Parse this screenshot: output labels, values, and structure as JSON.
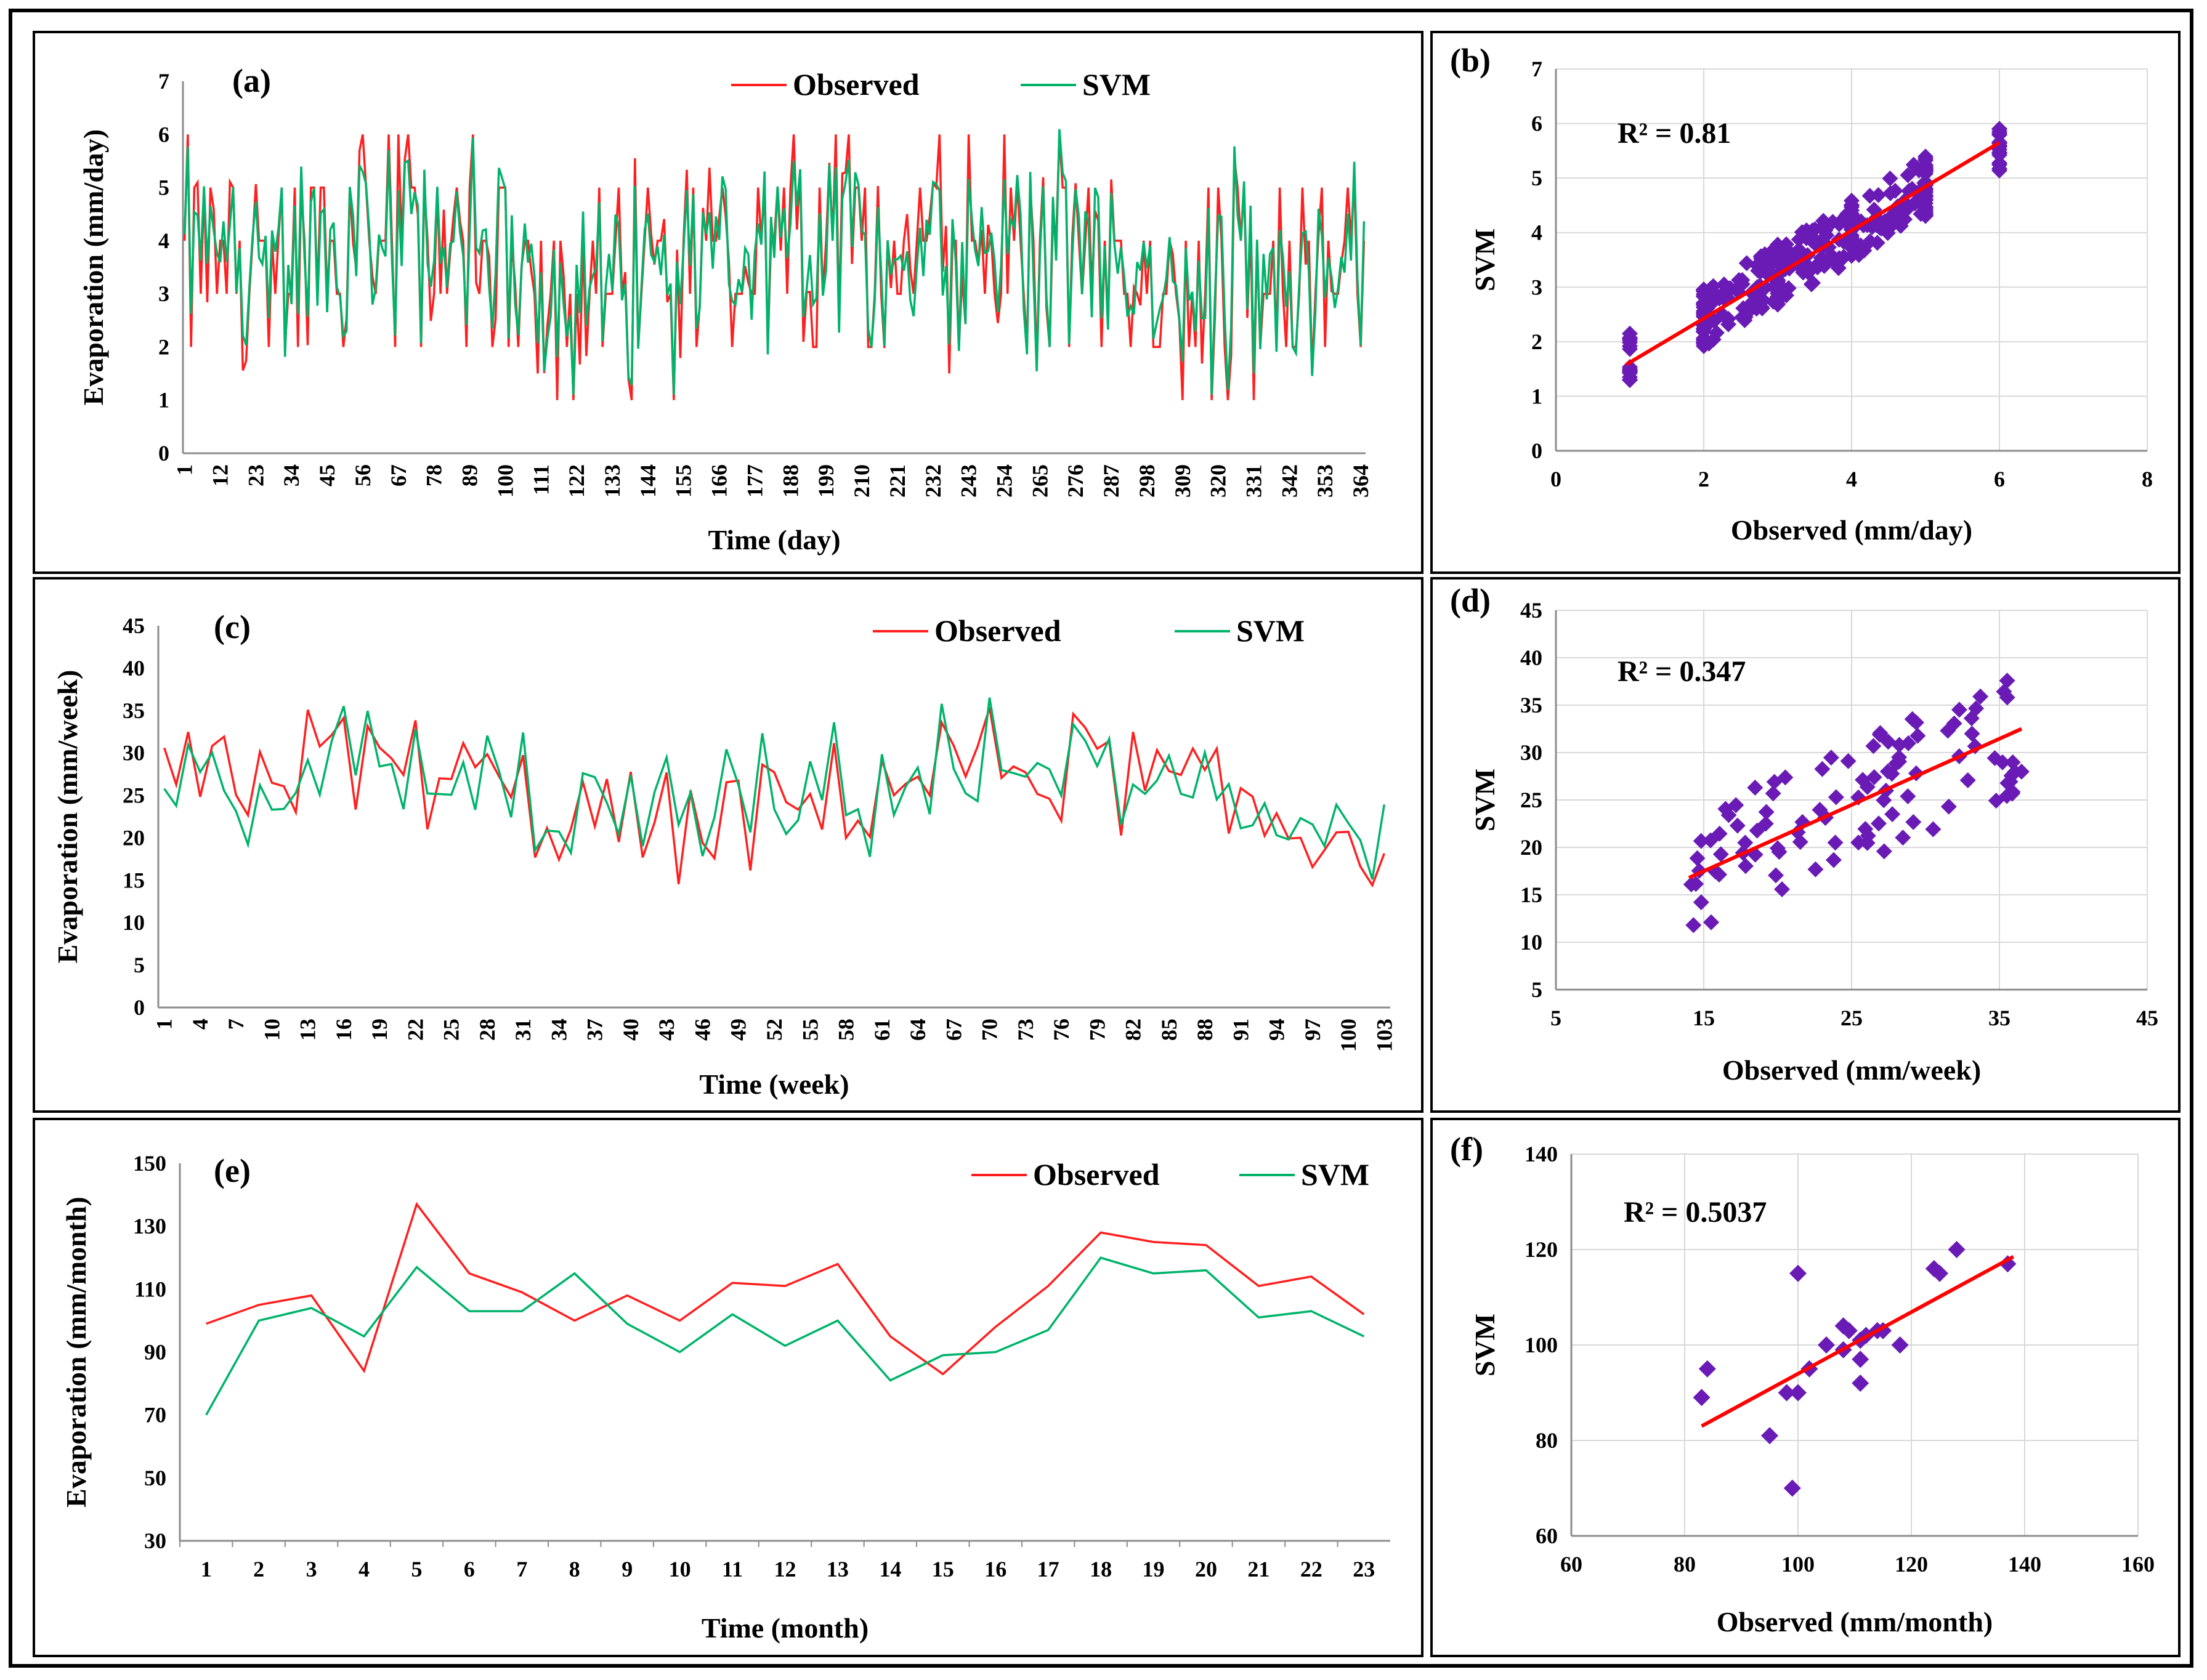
{
  "colors": {
    "observed": "#ff1f1f",
    "svm": "#00b36b",
    "scatter": "#6a1bb5",
    "trend": "#ff0000"
  },
  "chart_data": [
    {
      "id": "a",
      "panel_label": "(a)",
      "type": "line",
      "title": "",
      "xlabel": "Time (day)",
      "ylabel": "Evaporation  (mm/day)",
      "ylim": [
        0,
        7
      ],
      "yticks": [
        "0",
        "1",
        "2",
        "3",
        "4",
        "5",
        "6",
        "7"
      ],
      "xticks": [
        "1",
        "12",
        "23",
        "34",
        "45",
        "56",
        "67",
        "78",
        "89",
        "100",
        "111",
        "122",
        "133",
        "144",
        "155",
        "166",
        "177",
        "188",
        "199",
        "210",
        "221",
        "232",
        "243",
        "254",
        "265",
        "276",
        "287",
        "298",
        "309",
        "320",
        "331",
        "342",
        "353",
        "364"
      ],
      "x_count": 365,
      "generated_series": true,
      "legend": [
        {
          "name": "Observed"
        },
        {
          "name": "SVM"
        }
      ],
      "series": [
        {
          "name": "Observed"
        },
        {
          "name": "SVM"
        }
      ]
    },
    {
      "id": "b",
      "panel_label": "(b)",
      "type": "scatter",
      "xlabel": "Observed (mm/day)",
      "ylabel": "SVM",
      "xlim": [
        0,
        8
      ],
      "ylim": [
        0,
        7
      ],
      "xticks": [
        "0",
        "2",
        "4",
        "6",
        "8"
      ],
      "yticks": [
        "0",
        "1",
        "2",
        "3",
        "4",
        "5",
        "6",
        "7"
      ],
      "r2_label": "R² = 0.81",
      "trend": [
        [
          0.95,
          1.58
        ],
        [
          6.0,
          5.65
        ]
      ],
      "generated_points": true
    },
    {
      "id": "c",
      "panel_label": "(c)",
      "type": "line",
      "xlabel": "Time (week)",
      "ylabel": "Evaporation  (mm/week)",
      "ylim": [
        0,
        45
      ],
      "yticks": [
        "0",
        "5",
        "10",
        "15",
        "20",
        "25",
        "30",
        "35",
        "40",
        "45"
      ],
      "xticks": [
        "1",
        "4",
        "7",
        "10",
        "13",
        "16",
        "19",
        "22",
        "25",
        "28",
        "31",
        "34",
        "37",
        "40",
        "43",
        "46",
        "49",
        "52",
        "55",
        "58",
        "61",
        "64",
        "67",
        "70",
        "73",
        "76",
        "79",
        "82",
        "85",
        "88",
        "91",
        "94",
        "97",
        "100",
        "103"
      ],
      "x_count": 103,
      "generated_series": true,
      "legend": [
        {
          "name": "Observed"
        },
        {
          "name": "SVM"
        }
      ],
      "series": [
        {
          "name": "Observed"
        },
        {
          "name": "SVM"
        }
      ]
    },
    {
      "id": "d",
      "panel_label": "(d)",
      "type": "scatter",
      "xlabel": "Observed (mm/week)",
      "ylabel": "SVM",
      "xlim": [
        5,
        45
      ],
      "ylim": [
        5,
        45
      ],
      "xticks": [
        "5",
        "15",
        "25",
        "35",
        "45"
      ],
      "yticks": [
        "5",
        "10",
        "15",
        "20",
        "25",
        "30",
        "35",
        "40",
        "45"
      ],
      "r2_label": "R² = 0.347",
      "trend": [
        [
          14,
          16.8
        ],
        [
          36.5,
          32.5
        ]
      ],
      "generated_points": true
    },
    {
      "id": "e",
      "panel_label": "(e)",
      "type": "line",
      "xlabel": "Time (month)",
      "ylabel": "Evaporation  (mm/month)",
      "ylim": [
        30,
        150
      ],
      "yticks": [
        "30",
        "50",
        "70",
        "90",
        "110",
        "130",
        "150"
      ],
      "categories": [
        "1",
        "2",
        "3",
        "4",
        "5",
        "6",
        "7",
        "8",
        "9",
        "10",
        "11",
        "12",
        "13",
        "14",
        "15",
        "16",
        "17",
        "18",
        "19",
        "20",
        "21",
        "22",
        "23"
      ],
      "legend": [
        {
          "name": "Observed"
        },
        {
          "name": "SVM"
        }
      ],
      "series": [
        {
          "name": "Observed",
          "values": [
            99,
            105,
            108,
            84,
            137,
            115,
            109,
            100,
            108,
            100,
            112,
            111,
            118,
            95,
            83,
            98,
            111,
            128,
            125,
            124,
            111,
            114,
            102
          ]
        },
        {
          "name": "SVM",
          "values": [
            70,
            100,
            104,
            95,
            117,
            103,
            103,
            115,
            99,
            90,
            102,
            92,
            100,
            81,
            89,
            90,
            97,
            120,
            115,
            116,
            101,
            103,
            95
          ]
        }
      ]
    },
    {
      "id": "f",
      "panel_label": "(f)",
      "type": "scatter",
      "xlabel": "Observed (mm/month)",
      "ylabel": "SVM",
      "xlim": [
        60,
        160
      ],
      "ylim": [
        60,
        140
      ],
      "xticks": [
        "60",
        "80",
        "100",
        "120",
        "140",
        "160"
      ],
      "yticks": [
        "60",
        "80",
        "100",
        "120",
        "140"
      ],
      "r2_label": "R² = 0.5037",
      "trend": [
        [
          83,
          83
        ],
        [
          138,
          118.5
        ]
      ],
      "points": [
        [
          99,
          70
        ],
        [
          105,
          100
        ],
        [
          108,
          104
        ],
        [
          84,
          95
        ],
        [
          137,
          117
        ],
        [
          115,
          103
        ],
        [
          109,
          103
        ],
        [
          100,
          115
        ],
        [
          108,
          99
        ],
        [
          100,
          90
        ],
        [
          112,
          102
        ],
        [
          111,
          92
        ],
        [
          118,
          100
        ],
        [
          95,
          81
        ],
        [
          83,
          89
        ],
        [
          98,
          90
        ],
        [
          111,
          97
        ],
        [
          128,
          120
        ],
        [
          125,
          115
        ],
        [
          124,
          116
        ],
        [
          111,
          101
        ],
        [
          114,
          103
        ],
        [
          102,
          95
        ]
      ]
    }
  ]
}
